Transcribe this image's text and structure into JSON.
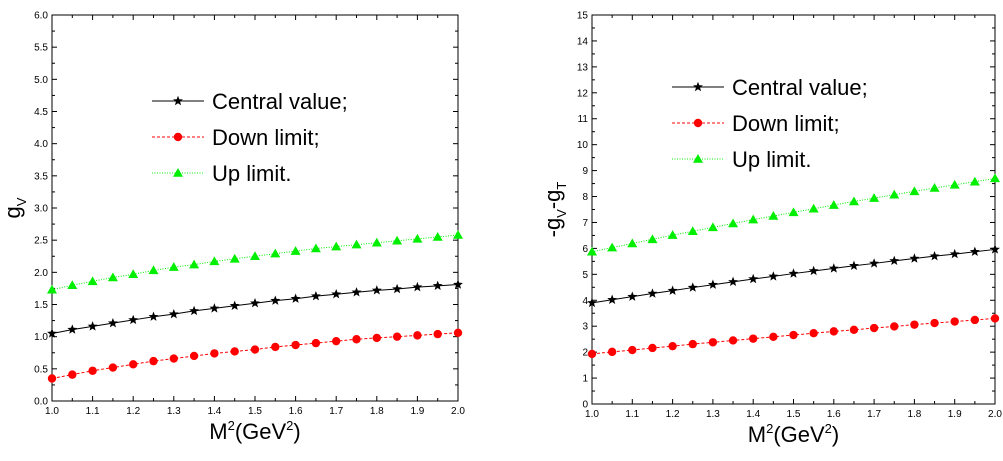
{
  "chart_data": [
    {
      "type": "line",
      "ylabel": "g",
      "ylabel_sub": "V",
      "xlabel": "M",
      "xlabel_sup": "2",
      "xlabel_unit_open": "(GeV",
      "xlabel_unit_sup": "2",
      "xlabel_unit_close": ")",
      "xlim": [
        1.0,
        2.0
      ],
      "ylim": [
        0.0,
        6.0
      ],
      "x_ticks": [
        "1.0",
        "1.1",
        "1.2",
        "1.3",
        "1.4",
        "1.5",
        "1.6",
        "1.7",
        "1.8",
        "1.9",
        "2.0"
      ],
      "y_ticks": [
        "0.0",
        "0.5",
        "1.0",
        "1.5",
        "2.0",
        "2.5",
        "3.0",
        "3.5",
        "4.0",
        "4.5",
        "5.0",
        "5.5",
        "6.0"
      ],
      "grid": false,
      "legend_position": "upper-center",
      "x": [
        1.0,
        1.05,
        1.1,
        1.15,
        1.2,
        1.25,
        1.3,
        1.35,
        1.4,
        1.45,
        1.5,
        1.55,
        1.6,
        1.65,
        1.7,
        1.75,
        1.8,
        1.85,
        1.9,
        1.95,
        2.0
      ],
      "series": [
        {
          "name": "Central value;",
          "marker": "star",
          "color": "#000000",
          "line": "solid",
          "values": [
            1.05,
            1.11,
            1.16,
            1.21,
            1.26,
            1.31,
            1.35,
            1.4,
            1.44,
            1.48,
            1.52,
            1.56,
            1.59,
            1.63,
            1.66,
            1.69,
            1.72,
            1.74,
            1.77,
            1.79,
            1.81
          ]
        },
        {
          "name": "Down limit;",
          "marker": "circle",
          "color": "#ff0000",
          "line": "dashed",
          "values": [
            0.35,
            0.41,
            0.47,
            0.52,
            0.57,
            0.62,
            0.66,
            0.7,
            0.74,
            0.77,
            0.8,
            0.84,
            0.87,
            0.9,
            0.93,
            0.96,
            0.98,
            1.0,
            1.02,
            1.04,
            1.06
          ]
        },
        {
          "name": "Up limit.",
          "marker": "triangle",
          "color": "#00ee00",
          "line": "dotted",
          "values": [
            1.73,
            1.8,
            1.86,
            1.92,
            1.97,
            2.03,
            2.08,
            2.12,
            2.17,
            2.21,
            2.25,
            2.29,
            2.33,
            2.37,
            2.4,
            2.43,
            2.46,
            2.49,
            2.52,
            2.55,
            2.58
          ]
        }
      ]
    },
    {
      "type": "line",
      "ylabel": "-g",
      "ylabel_sub": "V",
      "ylabel_mid": "-g",
      "ylabel_sub2": "T",
      "xlabel": "M",
      "xlabel_sup": "2",
      "xlabel_unit_open": "(GeV",
      "xlabel_unit_sup": "2",
      "xlabel_unit_close": ")",
      "xlim": [
        1.0,
        2.0
      ],
      "ylim": [
        0,
        15
      ],
      "x_ticks": [
        "1.0",
        "1.1",
        "1.2",
        "1.3",
        "1.4",
        "1.5",
        "1.6",
        "1.7",
        "1.8",
        "1.9",
        "2.0"
      ],
      "y_ticks": [
        "0",
        "1",
        "2",
        "3",
        "4",
        "5",
        "6",
        "7",
        "8",
        "9",
        "10",
        "11",
        "12",
        "13",
        "14",
        "15"
      ],
      "grid": false,
      "legend_position": "upper-center",
      "x": [
        1.0,
        1.05,
        1.1,
        1.15,
        1.2,
        1.25,
        1.3,
        1.35,
        1.4,
        1.45,
        1.5,
        1.55,
        1.6,
        1.65,
        1.7,
        1.75,
        1.8,
        1.85,
        1.9,
        1.95,
        2.0
      ],
      "series": [
        {
          "name": "Central value;",
          "marker": "star",
          "color": "#000000",
          "line": "solid",
          "values": [
            3.9,
            4.02,
            4.14,
            4.26,
            4.37,
            4.49,
            4.6,
            4.71,
            4.82,
            4.92,
            5.03,
            5.13,
            5.23,
            5.33,
            5.42,
            5.52,
            5.61,
            5.7,
            5.78,
            5.87,
            5.96
          ]
        },
        {
          "name": "Down limit;",
          "marker": "circle",
          "color": "#ff0000",
          "line": "dashed",
          "values": [
            1.93,
            2.01,
            2.08,
            2.16,
            2.23,
            2.31,
            2.38,
            2.45,
            2.52,
            2.59,
            2.66,
            2.73,
            2.8,
            2.86,
            2.93,
            2.99,
            3.06,
            3.12,
            3.18,
            3.24,
            3.3
          ]
        },
        {
          "name": "Up limit.",
          "marker": "triangle",
          "color": "#00ee00",
          "line": "dotted",
          "values": [
            5.87,
            6.03,
            6.19,
            6.35,
            6.51,
            6.66,
            6.81,
            6.96,
            7.11,
            7.25,
            7.39,
            7.53,
            7.67,
            7.81,
            7.94,
            8.07,
            8.2,
            8.33,
            8.45,
            8.57,
            8.7
          ]
        }
      ]
    }
  ]
}
